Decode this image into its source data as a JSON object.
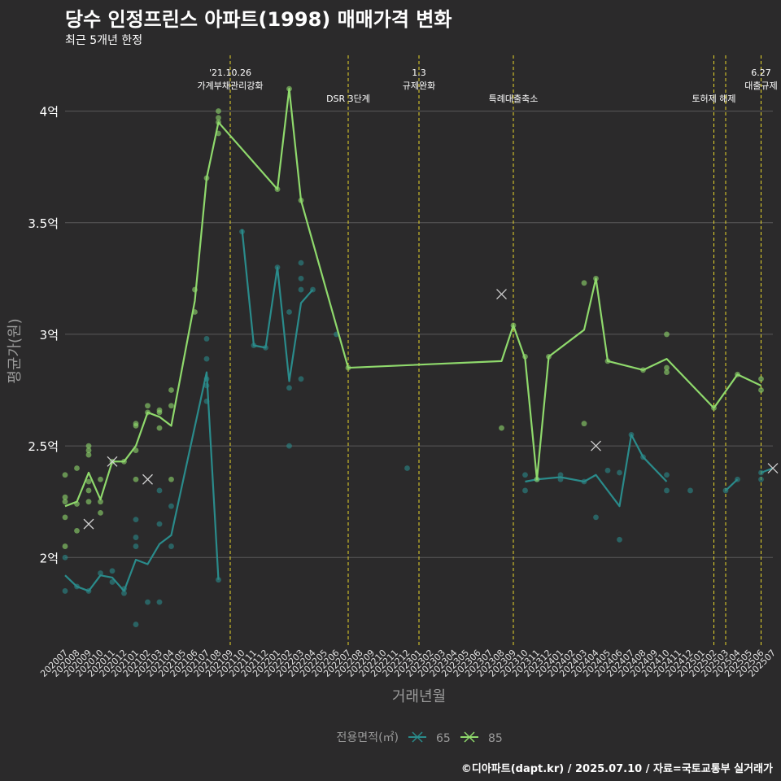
{
  "title": "당수 인정프린스 아파트(1998) 매매가격 변화",
  "subtitle": "최근 5개년 한정",
  "caption": "©디아파트(dapt.kr) / 2025.07.10 / 자료=국토교통부 실거래가",
  "chart_data": {
    "type": "line",
    "xlabel": "거래년월",
    "ylabel": "평균가(원)",
    "ylim": [
      1.6,
      4.25
    ],
    "yticks": [
      {
        "value": 2.0,
        "label": "2억"
      },
      {
        "value": 2.5,
        "label": "2.5억"
      },
      {
        "value": 3.0,
        "label": "3억"
      },
      {
        "value": 3.5,
        "label": "3.5억"
      },
      {
        "value": 4.0,
        "label": "4억"
      }
    ],
    "categories": [
      "202007",
      "202008",
      "202009",
      "202010",
      "202011",
      "202012",
      "202101",
      "202102",
      "202103",
      "202104",
      "202105",
      "202106",
      "202107",
      "202108",
      "202109",
      "202110",
      "202111",
      "202112",
      "202201",
      "202202",
      "202203",
      "202204",
      "202205",
      "202206",
      "202207",
      "202208",
      "202209",
      "202210",
      "202211",
      "202212",
      "202301",
      "202302",
      "202303",
      "202304",
      "202305",
      "202306",
      "202307",
      "202308",
      "202309",
      "202310",
      "202311",
      "202312",
      "202401",
      "202402",
      "202403",
      "202404",
      "202405",
      "202406",
      "202407",
      "202408",
      "202409",
      "202410",
      "202411",
      "202412",
      "202501",
      "202502",
      "202503",
      "202504",
      "202505",
      "202506",
      "202507"
    ],
    "legend": {
      "title": "전용면적(㎡)",
      "position": "bottom"
    },
    "series": [
      {
        "name": "65",
        "color": "#2a8b8b",
        "line": [
          [
            "202007",
            1.92
          ],
          [
            "202008",
            1.87
          ],
          [
            "202009",
            1.85
          ],
          [
            "202010",
            1.92
          ],
          [
            "202011",
            1.91
          ],
          [
            "202012",
            1.85
          ],
          [
            "202101",
            1.99
          ],
          [
            "202102",
            1.97
          ],
          [
            "202103",
            2.06
          ],
          [
            "202104",
            2.1
          ],
          [
            "202107",
            2.83
          ],
          [
            "202108",
            1.9
          ],
          null,
          [
            "202110",
            3.47
          ],
          [
            "202111",
            2.95
          ],
          [
            "202112",
            2.94
          ],
          [
            "202201",
            3.3
          ],
          [
            "202202",
            2.79
          ],
          [
            "202203",
            3.14
          ],
          [
            "202204",
            3.2
          ],
          null,
          [
            "202310",
            2.34
          ],
          [
            "202311",
            2.35
          ],
          [
            "202401",
            2.36
          ],
          [
            "202403",
            2.34
          ],
          [
            "202404",
            2.37
          ],
          [
            "202406",
            2.23
          ],
          [
            "202407",
            2.55
          ],
          [
            "202408",
            2.45
          ],
          [
            "202410",
            2.34
          ],
          null,
          [
            "202503",
            2.3
          ],
          [
            "202504",
            2.35
          ],
          null,
          [
            "202506",
            2.38
          ],
          [
            "202507",
            2.4
          ]
        ],
        "points": [
          [
            "202007",
            1.85
          ],
          [
            "202007",
            2.0
          ],
          [
            "202008",
            1.87
          ],
          [
            "202009",
            1.85
          ],
          [
            "202010",
            1.93
          ],
          [
            "202011",
            1.94
          ],
          [
            "202011",
            1.89
          ],
          [
            "202012",
            1.84
          ],
          [
            "202012",
            1.86
          ],
          [
            "202101",
            2.17
          ],
          [
            "202101",
            2.09
          ],
          [
            "202101",
            2.05
          ],
          [
            "202101",
            1.7
          ],
          [
            "202102",
            1.8
          ],
          [
            "202103",
            2.3
          ],
          [
            "202103",
            2.15
          ],
          [
            "202103",
            1.8
          ],
          [
            "202104",
            2.23
          ],
          [
            "202104",
            2.05
          ],
          [
            "202107",
            2.98
          ],
          [
            "202107",
            2.89
          ],
          [
            "202107",
            2.8
          ],
          [
            "202107",
            2.77
          ],
          [
            "202107",
            2.7
          ],
          [
            "202108",
            1.9
          ],
          [
            "202110",
            3.46
          ],
          [
            "202111",
            2.95
          ],
          [
            "202112",
            2.94
          ],
          [
            "202201",
            3.3
          ],
          [
            "202202",
            3.1
          ],
          [
            "202202",
            2.76
          ],
          [
            "202202",
            2.5
          ],
          [
            "202203",
            3.32
          ],
          [
            "202203",
            3.25
          ],
          [
            "202203",
            3.2
          ],
          [
            "202203",
            2.8
          ],
          [
            "202204",
            3.2
          ],
          [
            "202206",
            3.0
          ],
          [
            "202212",
            2.4
          ],
          [
            "202310",
            2.37
          ],
          [
            "202310",
            2.3
          ],
          [
            "202311",
            2.35
          ],
          [
            "202401",
            2.37
          ],
          [
            "202401",
            2.35
          ],
          [
            "202403",
            2.34
          ],
          [
            "202404",
            2.18
          ],
          [
            "202405",
            2.39
          ],
          [
            "202406",
            2.38
          ],
          [
            "202406",
            2.08
          ],
          [
            "202407",
            2.55
          ],
          [
            "202408",
            2.45
          ],
          [
            "202410",
            2.37
          ],
          [
            "202410",
            2.3
          ],
          [
            "202412",
            2.3
          ],
          [
            "202503",
            2.3
          ],
          [
            "202504",
            2.35
          ],
          [
            "202506",
            2.38
          ],
          [
            "202506",
            2.35
          ]
        ],
        "x_marks": [
          [
            "202102",
            2.35
          ],
          [
            "202404",
            2.5
          ],
          [
            "202507",
            2.4
          ]
        ]
      },
      {
        "name": "85",
        "color": "#8fd96c",
        "line": [
          [
            "202007",
            2.23
          ],
          [
            "202008",
            2.25
          ],
          [
            "202009",
            2.38
          ],
          [
            "202010",
            2.26
          ],
          [
            "202011",
            2.43
          ],
          [
            "202012",
            2.43
          ],
          [
            "202101",
            2.5
          ],
          [
            "202102",
            2.65
          ],
          [
            "202103",
            2.63
          ],
          [
            "202104",
            2.59
          ],
          [
            "202106",
            3.15
          ],
          [
            "202107",
            3.7
          ],
          [
            "202108",
            3.95
          ],
          [
            "202201",
            3.65
          ],
          [
            "202202",
            4.1
          ],
          [
            "202203",
            3.6
          ],
          [
            "202207",
            2.85
          ],
          [
            "202308",
            2.88
          ],
          [
            "202309",
            3.04
          ],
          [
            "202310",
            2.89
          ],
          [
            "202311",
            2.35
          ],
          [
            "202312",
            2.9
          ],
          [
            "202403",
            3.02
          ],
          [
            "202404",
            3.25
          ],
          [
            "202405",
            2.88
          ],
          [
            "202408",
            2.84
          ],
          [
            "202410",
            2.89
          ],
          [
            "202502",
            2.67
          ],
          [
            "202504",
            2.82
          ],
          [
            "202506",
            2.77
          ]
        ],
        "points": [
          [
            "202007",
            2.37
          ],
          [
            "202007",
            2.27
          ],
          [
            "202007",
            2.25
          ],
          [
            "202007",
            2.18
          ],
          [
            "202007",
            2.05
          ],
          [
            "202008",
            2.4
          ],
          [
            "202008",
            2.24
          ],
          [
            "202008",
            2.12
          ],
          [
            "202009",
            2.5
          ],
          [
            "202009",
            2.48
          ],
          [
            "202009",
            2.46
          ],
          [
            "202009",
            2.34
          ],
          [
            "202009",
            2.3
          ],
          [
            "202009",
            2.25
          ],
          [
            "202010",
            2.35
          ],
          [
            "202010",
            2.25
          ],
          [
            "202010",
            2.2
          ],
          [
            "202011",
            2.43
          ],
          [
            "202012",
            2.43
          ],
          [
            "202101",
            2.6
          ],
          [
            "202101",
            2.59
          ],
          [
            "202101",
            2.48
          ],
          [
            "202101",
            2.35
          ],
          [
            "202102",
            2.68
          ],
          [
            "202102",
            2.65
          ],
          [
            "202103",
            2.66
          ],
          [
            "202103",
            2.65
          ],
          [
            "202103",
            2.58
          ],
          [
            "202104",
            2.75
          ],
          [
            "202104",
            2.68
          ],
          [
            "202104",
            2.35
          ],
          [
            "202106",
            3.2
          ],
          [
            "202106",
            3.1
          ],
          [
            "202107",
            3.7
          ],
          [
            "202108",
            4.0
          ],
          [
            "202108",
            3.97
          ],
          [
            "202108",
            3.95
          ],
          [
            "202108",
            3.9
          ],
          [
            "202201",
            3.65
          ],
          [
            "202202",
            4.1
          ],
          [
            "202203",
            3.6
          ],
          [
            "202207",
            2.85
          ],
          [
            "202308",
            2.58
          ],
          [
            "202309",
            3.04
          ],
          [
            "202310",
            2.9
          ],
          [
            "202311",
            2.35
          ],
          [
            "202312",
            2.9
          ],
          [
            "202403",
            3.23
          ],
          [
            "202403",
            2.6
          ],
          [
            "202404",
            3.25
          ],
          [
            "202405",
            2.88
          ],
          [
            "202408",
            2.84
          ],
          [
            "202410",
            3.0
          ],
          [
            "202410",
            2.85
          ],
          [
            "202410",
            2.83
          ],
          [
            "202502",
            2.67
          ],
          [
            "202504",
            2.82
          ],
          [
            "202506",
            2.8
          ],
          [
            "202506",
            2.75
          ]
        ],
        "x_marks": [
          [
            "202009",
            2.15
          ],
          [
            "202011",
            2.43
          ],
          [
            "202308",
            3.18
          ]
        ]
      }
    ],
    "annotations": [
      {
        "x": "202109",
        "lines": [
          "'21.10.26",
          "가계부채관리강화"
        ]
      },
      {
        "x": "202207",
        "lines": [
          "DSR 3단계"
        ]
      },
      {
        "x": "202301",
        "lines": [
          "1.3",
          "규제완화"
        ]
      },
      {
        "x": "202309",
        "lines": [
          "특례대출축소"
        ]
      },
      {
        "x": "202502",
        "lines": [
          "토허제 해제"
        ]
      },
      {
        "x": "202503",
        "lines": []
      },
      {
        "x": "202506",
        "lines": [
          "6.27",
          "대출규제"
        ]
      }
    ]
  }
}
